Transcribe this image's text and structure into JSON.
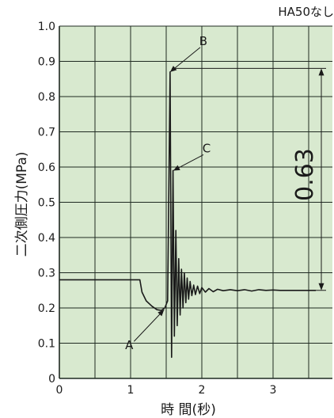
{
  "top_note": "HA50なし",
  "chart_data": {
    "type": "line",
    "xlabel": "時 間(秒)",
    "ylabel": "二次側圧力(MPa)",
    "xlim": [
      0,
      3.7
    ],
    "ylim": [
      0,
      1.0
    ],
    "x_ticks": [
      "0",
      "1",
      "2",
      "3"
    ],
    "y_ticks": [
      "0",
      "0.1",
      "0.2",
      "0.3",
      "0.4",
      "0.5",
      "0.6",
      "0.7",
      "0.8",
      "0.9",
      "1.0"
    ],
    "grid": true,
    "background_color": "#d8e9cf",
    "grid_color": "#1f2a22",
    "line_color": "#1a1a1a",
    "series": [
      {
        "x": [
          0,
          1.13,
          1.16,
          1.22,
          1.3,
          1.37,
          1.43,
          1.48,
          1.52,
          1.555,
          1.575,
          1.595,
          1.615,
          1.635,
          1.655,
          1.675,
          1.695,
          1.715,
          1.735,
          1.755,
          1.775,
          1.795,
          1.815,
          1.835,
          1.86,
          1.885,
          1.91,
          1.94,
          1.97,
          2.0,
          2.05,
          2.1,
          2.16,
          2.22,
          2.3,
          2.4,
          2.5,
          2.6,
          2.7,
          2.8,
          2.9,
          3.0,
          3.1,
          3.2,
          3.3,
          3.4,
          3.5,
          3.6
        ],
        "y": [
          0.28,
          0.28,
          0.245,
          0.22,
          0.205,
          0.195,
          0.193,
          0.2,
          0.22,
          0.87,
          0.06,
          0.59,
          0.12,
          0.42,
          0.15,
          0.34,
          0.18,
          0.31,
          0.2,
          0.3,
          0.215,
          0.285,
          0.225,
          0.275,
          0.235,
          0.265,
          0.238,
          0.262,
          0.241,
          0.258,
          0.245,
          0.255,
          0.246,
          0.253,
          0.249,
          0.252,
          0.249,
          0.252,
          0.248,
          0.252,
          0.25,
          0.251,
          0.25,
          0.25,
          0.25,
          0.25,
          0.25,
          0.25
        ]
      }
    ],
    "annotations": [
      {
        "label": "A",
        "x": 1.47,
        "y": 0.195
      },
      {
        "label": "B",
        "x": 1.555,
        "y": 0.87
      },
      {
        "label": "C",
        "x": 1.6,
        "y": 0.59
      }
    ],
    "range_marker": {
      "label": "0.63",
      "from": 0.25,
      "to": 0.88
    }
  }
}
